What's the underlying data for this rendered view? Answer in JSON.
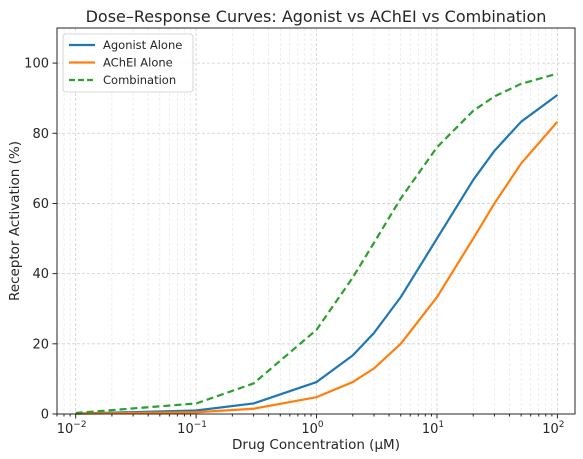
{
  "chart_data": {
    "type": "line",
    "title": "Dose–Response Curves: Agonist vs AChEI vs Combination",
    "xlabel": "Drug Concentration (µM)",
    "ylabel": "Receptor Activation (%)",
    "xscale": "log",
    "xlim": [
      0.007,
      140
    ],
    "ylim": [
      0,
      110
    ],
    "x_ticks": [
      {
        "value": 0.01,
        "base": "10",
        "exp": "−2"
      },
      {
        "value": 0.1,
        "base": "10",
        "exp": "−1"
      },
      {
        "value": 1,
        "base": "10",
        "exp": "0"
      },
      {
        "value": 10,
        "base": "10",
        "exp": "1"
      },
      {
        "value": 100,
        "base": "10",
        "exp": "2"
      }
    ],
    "y_ticks": [
      0,
      20,
      40,
      60,
      80,
      100
    ],
    "grid": true,
    "legend_position": "top-left",
    "series": [
      {
        "name": "Agonist Alone",
        "color": "#1f77b4",
        "style": "solid",
        "x": [
          0.01,
          0.1,
          0.3,
          1,
          2,
          3,
          5,
          10,
          20,
          30,
          50,
          100
        ],
        "y": [
          0.1,
          1.0,
          3.0,
          9.1,
          16.7,
          23.1,
          33.3,
          50.0,
          66.7,
          75.0,
          83.3,
          90.9
        ]
      },
      {
        "name": "AChEI Alone",
        "color": "#ff7f0e",
        "style": "solid",
        "x": [
          0.01,
          0.1,
          0.3,
          1,
          2,
          3,
          5,
          10,
          20,
          30,
          50,
          100
        ],
        "y": [
          0.05,
          0.5,
          1.5,
          4.8,
          9.1,
          13.0,
          20.0,
          33.3,
          50.0,
          60.0,
          71.4,
          83.3
        ]
      },
      {
        "name": "Combination",
        "color": "#2ca02c",
        "style": "dashed",
        "x": [
          0.01,
          0.1,
          0.3,
          1,
          2,
          3,
          5,
          10,
          20,
          30,
          50,
          100
        ],
        "y": [
          0.3,
          3.0,
          8.7,
          24.0,
          38.9,
          48.8,
          61.4,
          76.0,
          86.4,
          90.5,
          94.1,
          97.0
        ]
      }
    ]
  }
}
